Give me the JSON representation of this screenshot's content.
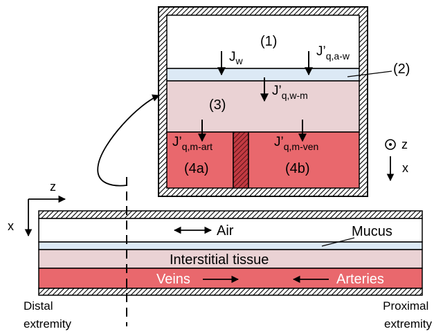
{
  "colors": {
    "air": "#ffffff",
    "mucus": "#dce9f5",
    "tissue": "#ead2d4",
    "blood": "#e9686d",
    "septum": "#b53038",
    "hatch": "#000000"
  },
  "inset": {
    "regions": {
      "air": "(1)",
      "mucus": "(2)",
      "tissue": "(3)",
      "artery": "(4a)",
      "vein": "(4b)"
    },
    "fluxes": {
      "jw_main": "J",
      "jw_sub": "w",
      "jq_aw_main": "J’",
      "jq_aw_sub": "q,a-w",
      "jq_wm_main": "J’",
      "jq_wm_sub": "q,w-m",
      "jq_mart_main": "J’",
      "jq_mart_sub": "q,m-art",
      "jq_mven_main": "J’",
      "jq_mven_sub": "q,m-ven"
    },
    "axes": {
      "z": "z",
      "x": "x"
    }
  },
  "airway": {
    "axes": {
      "z": "z",
      "x": "x"
    },
    "labels": {
      "air": "Air",
      "mucus": "Mucus",
      "tissue": "Interstitial tissue",
      "veins": "Veins",
      "arteries": "Arteries"
    },
    "ends": {
      "distal_line1": "Distal",
      "distal_line2": "extremity",
      "proximal_line1": "Proximal",
      "proximal_line2": "extremity"
    }
  }
}
